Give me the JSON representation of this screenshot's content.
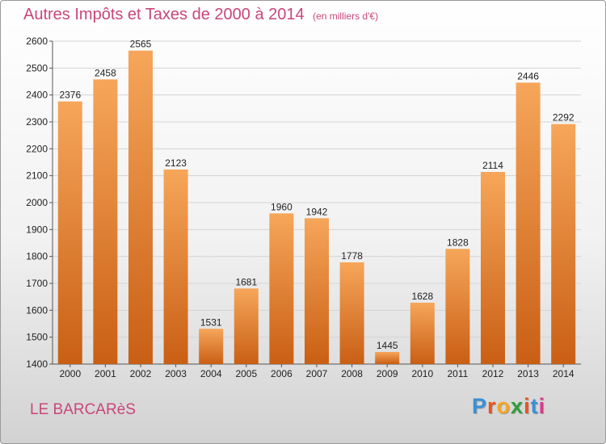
{
  "header": {
    "title": "Autres Impôts et Taxes de 2000 à 2014",
    "subtitle": "(en milliers d'€)"
  },
  "footer": {
    "location": "LE BARCARèS"
  },
  "logo": {
    "text": "Proxiti",
    "letter_colors": [
      "#3a8fd6",
      "#e8531f",
      "#f5a623",
      "#2f9e3a",
      "#e8531f",
      "#3a8fd6",
      "#d93a8a"
    ]
  },
  "colors": {
    "bar_top": "#f6a65a",
    "bar_bottom": "#c95f14",
    "accent": "#c9467a"
  },
  "chart_data": {
    "type": "bar",
    "title": "Autres Impôts et Taxes de 2000 à 2014",
    "subtitle": "(en milliers d'€)",
    "xlabel": "",
    "ylabel": "",
    "categories": [
      "2000",
      "2001",
      "2002",
      "2003",
      "2004",
      "2005",
      "2006",
      "2007",
      "2008",
      "2009",
      "2010",
      "2011",
      "2012",
      "2013",
      "2014"
    ],
    "values": [
      2376,
      2458,
      2565,
      2123,
      1531,
      1681,
      1960,
      1942,
      1778,
      1445,
      1628,
      1828,
      2114,
      2446,
      2292
    ],
    "ylim": [
      1400,
      2600
    ],
    "yticks": [
      1400,
      1500,
      1600,
      1700,
      1800,
      1900,
      2000,
      2100,
      2200,
      2300,
      2400,
      2500,
      2600
    ],
    "grid": true,
    "legend": "none"
  }
}
